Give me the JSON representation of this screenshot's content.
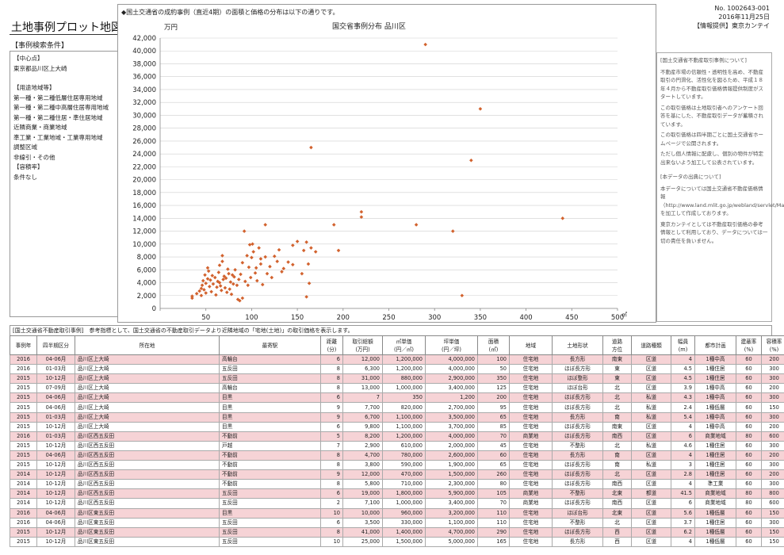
{
  "page_title": "土地事例プロット地図",
  "search_conditions_label": "【事例検索条件】",
  "conditions": {
    "center_label": "【中心点】",
    "center_value": "東京都品川区上大崎",
    "zoning_label": "【用途地域等】",
    "zoning_items": [
      "第一種・第二種低層住居専用地域",
      "第一種・第二種中高層住居専用地域",
      "第一種・第二種住居・準住居地域",
      "近隣商業・商業地域",
      "準工業・工業地域・工業専用地域",
      "調整区域",
      "非線引・その他"
    ],
    "far_label": "【容積率】",
    "far_value": "条件なし"
  },
  "doc": {
    "number": "No. 1002643-001",
    "date": "2016年11月25日",
    "provider": "【情報提供】東京カンテイ"
  },
  "chart_note": "◆国土交通省の成約事例（直近4期）の面積と価格の分布は以下の通りです。",
  "info_panel": {
    "heading1": "[国土交通省不動産取引事例について]",
    "p1": "不動産市場の信頼性・透明性を高め、不動産取引の円滑化、活性化を図るため、平成１８年４月から不動産取引価格情報提供制度がスタートしています。",
    "p2": "この取引価格は土地取引者へのアンケート回答を基にした、不動産取引データが蓄積されています。",
    "p3": "この取引価格は四半期ごとに国土交通省ホームページで公開されます。",
    "p4": "ただし個人情報に配慮し、個別の物件が特定出来ないよう加工して公表されています。",
    "heading2": "[本データの出典について]",
    "p5": "本データについては国土交通省不動産価格情報（http://www.land.mlit.go.jp/webland/servlet/MainServlet）を加工して作成しております。",
    "p6": "東京カンテイとしては不動産取引価格の参考情報として利用しており、データについては一切の責任を負いません。"
  },
  "chart_data": {
    "type": "scatter",
    "title": "国交省事例分布 品川区",
    "ylabel": "万円",
    "xlabel": "㎡",
    "xlim": [
      0,
      500
    ],
    "ylim": [
      0,
      42000
    ],
    "xticks": [
      0,
      50,
      100,
      150,
      200,
      250,
      300,
      350,
      400,
      450,
      500
    ],
    "yticks": [
      0,
      2000,
      4000,
      6000,
      8000,
      10000,
      12000,
      14000,
      16000,
      18000,
      20000,
      22000,
      24000,
      26000,
      28000,
      30000,
      32000,
      34000,
      36000,
      38000,
      40000,
      42000
    ],
    "ytick_labels": [
      "0",
      "2,000",
      "4,000",
      "6,000",
      "8,000",
      "10,000",
      "12,000",
      "14,000",
      "16,000",
      "18,000",
      "20,000",
      "22,000",
      "24,000",
      "26,000",
      "28,000",
      "30,000",
      "32,000",
      "34,000",
      "36,000",
      "38,000",
      "40,000",
      "42,000"
    ],
    "grid": true,
    "color": "#d2622e",
    "points": [
      [
        35,
        1600
      ],
      [
        35,
        1900
      ],
      [
        40,
        2300
      ],
      [
        43,
        2700
      ],
      [
        45,
        3100
      ],
      [
        45,
        2000
      ],
      [
        46,
        3600
      ],
      [
        47,
        4300
      ],
      [
        48,
        2900
      ],
      [
        49,
        5200
      ],
      [
        50,
        3900
      ],
      [
        50,
        2400
      ],
      [
        52,
        4600
      ],
      [
        52,
        6300
      ],
      [
        53,
        5800
      ],
      [
        54,
        3400
      ],
      [
        55,
        4400
      ],
      [
        56,
        2600
      ],
      [
        57,
        5100
      ],
      [
        58,
        3800
      ],
      [
        60,
        4800
      ],
      [
        61,
        2100
      ],
      [
        62,
        3300
      ],
      [
        63,
        4200
      ],
      [
        64,
        5600
      ],
      [
        65,
        4000
      ],
      [
        65,
        6700
      ],
      [
        66,
        3500
      ],
      [
        67,
        2800
      ],
      [
        68,
        7300
      ],
      [
        68,
        8200
      ],
      [
        69,
        4500
      ],
      [
        70,
        5000
      ],
      [
        71,
        3200
      ],
      [
        72,
        4700
      ],
      [
        73,
        2500
      ],
      [
        74,
        6100
      ],
      [
        75,
        5400
      ],
      [
        76,
        3000
      ],
      [
        77,
        4100
      ],
      [
        78,
        2200
      ],
      [
        79,
        5200
      ],
      [
        80,
        3800
      ],
      [
        81,
        4900
      ],
      [
        82,
        6000
      ],
      [
        84,
        3600
      ],
      [
        85,
        1400
      ],
      [
        86,
        4500
      ],
      [
        87,
        1200
      ],
      [
        88,
        5300
      ],
      [
        90,
        7100
      ],
      [
        90,
        1600
      ],
      [
        92,
        12000
      ],
      [
        93,
        4200
      ],
      [
        95,
        8200
      ],
      [
        96,
        3600
      ],
      [
        97,
        6400
      ],
      [
        98,
        9900
      ],
      [
        99,
        4800
      ],
      [
        100,
        7900
      ],
      [
        101,
        10000
      ],
      [
        102,
        8800
      ],
      [
        104,
        5500
      ],
      [
        105,
        6300
      ],
      [
        106,
        4300
      ],
      [
        108,
        9400
      ],
      [
        110,
        7700
      ],
      [
        110,
        6900
      ],
      [
        112,
        3700
      ],
      [
        115,
        8000
      ],
      [
        115,
        13000
      ],
      [
        117,
        5400
      ],
      [
        120,
        6500
      ],
      [
        122,
        4800
      ],
      [
        125,
        8100
      ],
      [
        128,
        7300
      ],
      [
        130,
        9100
      ],
      [
        133,
        5700
      ],
      [
        135,
        6200
      ],
      [
        140,
        7200
      ],
      [
        145,
        9800
      ],
      [
        145,
        6800
      ],
      [
        150,
        10400
      ],
      [
        155,
        5400
      ],
      [
        157,
        9000
      ],
      [
        160,
        10300
      ],
      [
        160,
        1800
      ],
      [
        162,
        6900
      ],
      [
        163,
        3900
      ],
      [
        165,
        9400
      ],
      [
        165,
        25000
      ],
      [
        170,
        8800
      ],
      [
        190,
        13000
      ],
      [
        195,
        9000
      ],
      [
        220,
        14200
      ],
      [
        220,
        15000
      ],
      [
        280,
        13000
      ],
      [
        290,
        41000
      ],
      [
        320,
        12000
      ],
      [
        330,
        2000
      ],
      [
        340,
        23000
      ],
      [
        350,
        31000
      ],
      [
        440,
        14000
      ]
    ]
  },
  "table": {
    "caption": "[国土交通省不動産取引事例]　参考指標として、国土交通省の不動産取引データより近隣地域の「宅地(土地)」の取引価格を表示します。",
    "headers": [
      "事例年",
      "四半期区分",
      "所在地",
      "最寄駅",
      "距離\n(分)",
      "取引総額\n(万円)",
      "㎡単価\n(円／㎡)",
      "坪単価\n(円／坪)",
      "面積\n(㎡)",
      "地域",
      "土地形状",
      "道路\n方位",
      "道路種類",
      "幅員\n(m)",
      "都市計画",
      "建蔽率\n(%)",
      "容積率\n(%)"
    ],
    "rows": [
      {
        "pink": true,
        "cells": [
          "2016",
          "04-06月",
          "品川区上大崎",
          "高輪台",
          "6",
          "12,000",
          "1,200,000",
          "4,000,000",
          "100",
          "住宅地",
          "長方形",
          "南東",
          "区道",
          "4",
          "1種中高",
          "60",
          "200"
        ]
      },
      {
        "pink": false,
        "cells": [
          "2016",
          "01-03月",
          "品川区上大崎",
          "五反田",
          "8",
          "6,300",
          "1,200,000",
          "4,000,000",
          "50",
          "住宅地",
          "ほぼ長方形",
          "東",
          "区道",
          "4.5",
          "1種住居",
          "60",
          "300"
        ]
      },
      {
        "pink": true,
        "cells": [
          "2015",
          "10-12月",
          "品川区上大崎",
          "五反田",
          "8",
          "31,000",
          "880,000",
          "2,900,000",
          "350",
          "住宅地",
          "ほぼ整形",
          "東",
          "区道",
          "4.5",
          "1種住居",
          "60",
          "300"
        ]
      },
      {
        "pink": false,
        "cells": [
          "2015",
          "07-09月",
          "品川区上大崎",
          "高輪台",
          "8",
          "13,000",
          "1,000,000",
          "3,400,000",
          "125",
          "住宅地",
          "ほぼ台形",
          "北",
          "区道",
          "3.9",
          "1種中高",
          "60",
          "200"
        ]
      },
      {
        "pink": true,
        "cells": [
          "2015",
          "04-06月",
          "品川区上大崎",
          "目黒",
          "6",
          "7",
          "350",
          "1,200",
          "200",
          "住宅地",
          "ほぼ長方形",
          "北",
          "私道",
          "4.3",
          "1種中高",
          "60",
          "300"
        ]
      },
      {
        "pink": false,
        "cells": [
          "2015",
          "04-06月",
          "品川区上大崎",
          "目黒",
          "9",
          "7,700",
          "820,000",
          "2,700,000",
          "95",
          "住宅地",
          "ほぼ長方形",
          "北",
          "私道",
          "2.4",
          "1種低層",
          "60",
          "150"
        ]
      },
      {
        "pink": true,
        "cells": [
          "2015",
          "01-03月",
          "品川区上大崎",
          "目黒",
          "9",
          "6,700",
          "1,100,000",
          "3,500,000",
          "65",
          "住宅地",
          "長方形",
          "南",
          "私道",
          "5.4",
          "1種中高",
          "60",
          "300"
        ]
      },
      {
        "pink": false,
        "cells": [
          "2015",
          "10-12月",
          "品川区上大崎",
          "目黒",
          "6",
          "9,800",
          "1,100,000",
          "3,700,000",
          "85",
          "住宅地",
          "ほぼ長方形",
          "南東",
          "区道",
          "4",
          "1種中高",
          "60",
          "200"
        ]
      },
      {
        "pink": true,
        "cells": [
          "2016",
          "01-03月",
          "品川区西五反田",
          "不動前",
          "5",
          "8,200",
          "1,200,000",
          "4,000,000",
          "70",
          "商業地",
          "ほぼ長方形",
          "南西",
          "区道",
          "6",
          "商業地域",
          "80",
          "600"
        ]
      },
      {
        "pink": false,
        "cells": [
          "2015",
          "10-12月",
          "品川区西五反田",
          "戸越",
          "7",
          "2,900",
          "610,000",
          "2,000,000",
          "45",
          "住宅地",
          "不整形",
          "北",
          "私道",
          "4.6",
          "1種住居",
          "60",
          "300"
        ]
      },
      {
        "pink": true,
        "cells": [
          "2015",
          "04-06月",
          "品川区西五反田",
          "不動前",
          "8",
          "4,700",
          "780,000",
          "2,600,000",
          "60",
          "住宅地",
          "長方形",
          "南",
          "区道",
          "4",
          "1種住居",
          "60",
          "200"
        ]
      },
      {
        "pink": false,
        "cells": [
          "2015",
          "10-12月",
          "品川区西五反田",
          "不動前",
          "8",
          "3,800",
          "590,000",
          "1,900,000",
          "65",
          "住宅地",
          "ほぼ長方形",
          "南",
          "私道",
          "3",
          "1種住居",
          "60",
          "300"
        ]
      },
      {
        "pink": true,
        "cells": [
          "2014",
          "10-12月",
          "品川区西五反田",
          "不動前",
          "9",
          "12,000",
          "470,000",
          "1,500,000",
          "260",
          "住宅地",
          "ほぼ長方形",
          "北",
          "区道",
          "2.8",
          "1種住居",
          "60",
          "200"
        ]
      },
      {
        "pink": false,
        "cells": [
          "2014",
          "10-12月",
          "品川区西五反田",
          "不動前",
          "8",
          "5,800",
          "710,000",
          "2,300,000",
          "80",
          "住宅地",
          "ほぼ長方形",
          "南西",
          "区道",
          "4",
          "準工業",
          "60",
          "300"
        ]
      },
      {
        "pink": true,
        "cells": [
          "2014",
          "10-12月",
          "品川区西五反田",
          "五反田",
          "6",
          "19,000",
          "1,800,000",
          "5,900,000",
          "105",
          "商業地",
          "不整形",
          "北東",
          "都道",
          "41.5",
          "商業地域",
          "80",
          "800"
        ]
      },
      {
        "pink": false,
        "cells": [
          "2014",
          "10-12月",
          "品川区西五反田",
          "五反田",
          "2",
          "7,100",
          "1,000,000",
          "3,400,000",
          "70",
          "商業地",
          "ほぼ長方形",
          "南西",
          "区道",
          "6",
          "商業地域",
          "80",
          "600"
        ]
      },
      {
        "pink": true,
        "cells": [
          "2016",
          "04-06月",
          "品川区東五反田",
          "目黒",
          "10",
          "10,000",
          "960,000",
          "3,200,000",
          "110",
          "住宅地",
          "ほぼ台形",
          "北東",
          "区道",
          "5.6",
          "1種低層",
          "60",
          "150"
        ]
      },
      {
        "pink": false,
        "cells": [
          "2016",
          "04-06月",
          "品川区東五反田",
          "五反田",
          "6",
          "3,500",
          "330,000",
          "1,100,000",
          "110",
          "住宅地",
          "不整形",
          "北",
          "区道",
          "3.7",
          "1種住居",
          "60",
          "300"
        ]
      },
      {
        "pink": true,
        "cells": [
          "2015",
          "10-12月",
          "品川区東五反田",
          "五反田",
          "8",
          "41,000",
          "1,400,000",
          "4,700,000",
          "290",
          "住宅地",
          "ほぼ長方形",
          "西",
          "区道",
          "6.2",
          "1種低層",
          "60",
          "150"
        ]
      },
      {
        "pink": false,
        "cells": [
          "2015",
          "10-12月",
          "品川区東五反田",
          "五反田",
          "10",
          "25,000",
          "1,500,000",
          "5,000,000",
          "165",
          "住宅地",
          "長方形",
          "西",
          "区道",
          "4",
          "1種低層",
          "60",
          "150"
        ]
      }
    ]
  }
}
